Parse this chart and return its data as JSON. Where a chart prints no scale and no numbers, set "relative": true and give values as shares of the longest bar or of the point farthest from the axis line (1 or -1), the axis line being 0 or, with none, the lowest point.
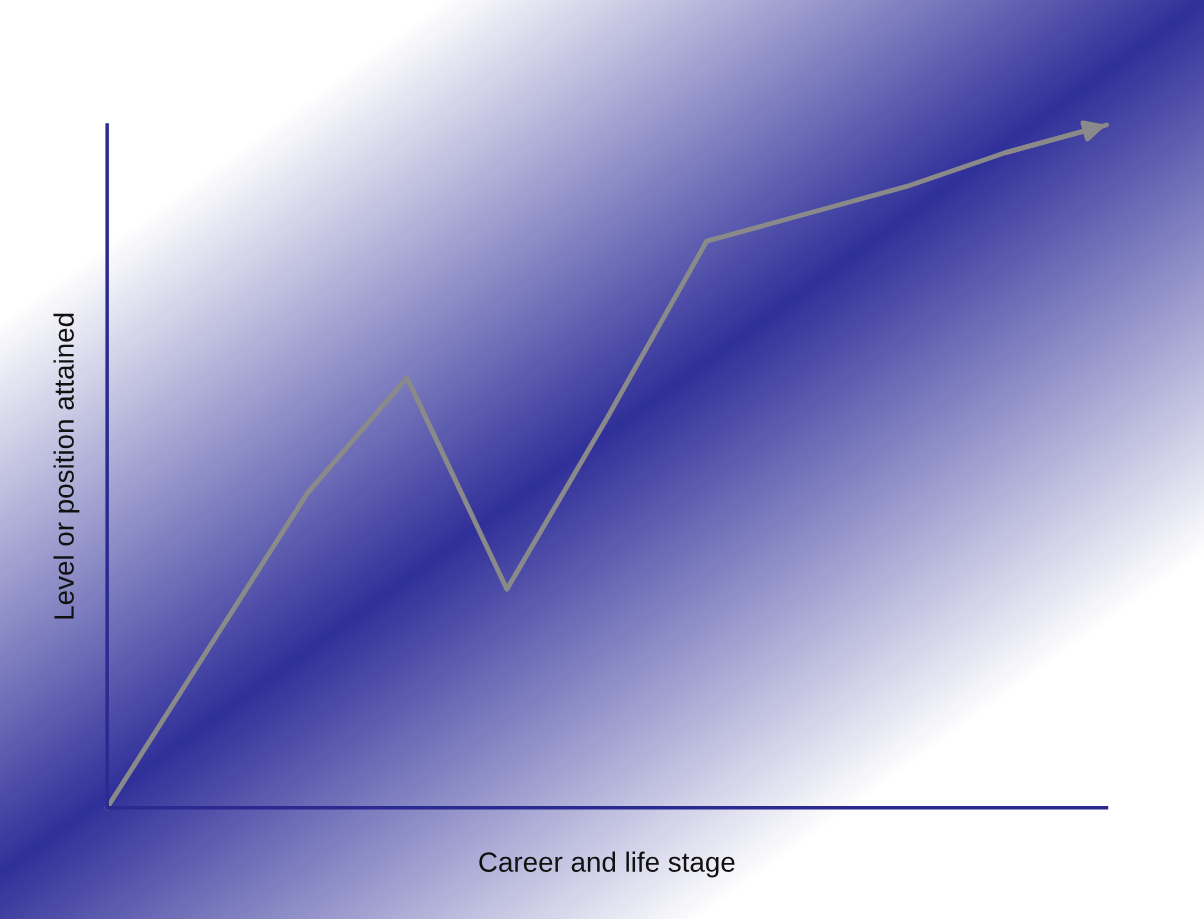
{
  "chart_data": {
    "type": "line",
    "relative": true,
    "xlabel": "Career and life stage",
    "ylabel": "Level or position attained",
    "categories": [
      null,
      null,
      null,
      null,
      null,
      null,
      null,
      null,
      null,
      null,
      null
    ],
    "series": [
      {
        "color": "#8a8a8a",
        "values": [
          0,
          0.23,
          0.46,
          0.63,
          0.32,
          0.57,
          0.83,
          0.87,
          0.91,
          0.96,
          1.0
        ]
      }
    ],
    "line_style": "solid"
  }
}
